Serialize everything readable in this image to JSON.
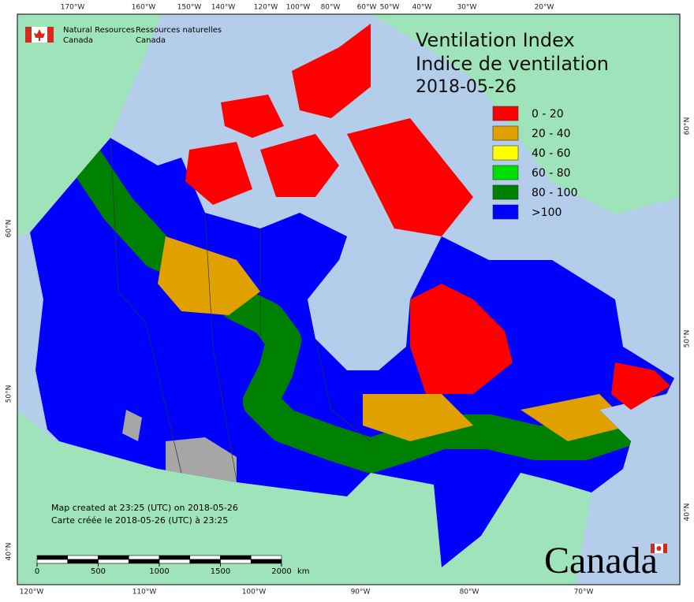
{
  "header": {
    "agency_en": [
      "Natural Resources",
      "Canada"
    ],
    "agency_fr": [
      "Ressources naturelles",
      "Canada"
    ]
  },
  "title": [
    "Ventilation Index",
    "Indice de ventilation",
    "2018-05-26"
  ],
  "legend": [
    {
      "label": "0 - 20",
      "color": "#ff0000"
    },
    {
      "label": "20 - 40",
      "color": "#e0a000"
    },
    {
      "label": "40 - 60",
      "color": "#ffff00"
    },
    {
      "label": "60 - 80",
      "color": "#00e000"
    },
    {
      "label": "80 - 100",
      "color": "#008000"
    },
    {
      "label": ">100",
      "color": "#0000ff"
    }
  ],
  "graticule": {
    "top": [
      "170°W",
      "160°W",
      "150°W",
      "140°W",
      "120°W",
      "100°W",
      "80°W",
      "60°W",
      "50°W",
      "40°W",
      "30°W",
      "20°W"
    ],
    "bottom": [
      "120°W",
      "110°W",
      "100°W",
      "90°W",
      "80°W",
      "70°W"
    ],
    "left": [
      "60°N",
      "50°N",
      "40°N"
    ],
    "right": [
      "60°N",
      "50°N",
      "40°N"
    ]
  },
  "credits": [
    "Map created at 23:25 (UTC) on 2018-05-26",
    "Carte créée le 2018-05-26 (UTC) à 23:25"
  ],
  "scale_bar": {
    "ticks": [
      0,
      500,
      1000,
      1500,
      2000
    ],
    "unit": "km"
  },
  "wordmark": "Canada"
}
